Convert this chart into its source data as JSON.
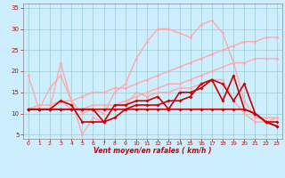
{
  "xlabel": "Vent moyen/en rafales ( km/h )",
  "background_color": "#cceeff",
  "grid_color": "#99cccc",
  "xlim": [
    -0.5,
    23.5
  ],
  "ylim": [
    4,
    36
  ],
  "yticks": [
    5,
    10,
    15,
    20,
    25,
    30,
    35
  ],
  "xticks": [
    0,
    1,
    2,
    3,
    4,
    5,
    6,
    7,
    8,
    9,
    10,
    11,
    12,
    13,
    14,
    15,
    16,
    17,
    18,
    19,
    20,
    21,
    22,
    23
  ],
  "series": [
    {
      "x": [
        0,
        1,
        2,
        3,
        4,
        5,
        6,
        7,
        8,
        9,
        10,
        11,
        12,
        13,
        14,
        15,
        16,
        17,
        18,
        19,
        20,
        21,
        22,
        23
      ],
      "y": [
        11,
        11,
        16,
        19,
        13,
        10,
        11,
        10,
        15,
        17,
        23,
        27,
        30,
        30,
        29,
        28,
        31,
        32,
        29,
        22,
        13,
        9,
        9,
        9
      ],
      "color": "#ffaaaa",
      "linewidth": 1.0,
      "markersize": 2.0
    },
    {
      "x": [
        0,
        1,
        2,
        3,
        4,
        5,
        6,
        7,
        8,
        9,
        10,
        11,
        12,
        13,
        14,
        15,
        16,
        17,
        18,
        19,
        20,
        21,
        22,
        23
      ],
      "y": [
        19,
        11,
        11,
        22,
        13,
        5,
        9,
        8,
        12,
        12,
        15,
        14,
        15,
        15,
        16,
        16,
        17,
        18,
        18,
        13,
        10,
        8,
        8,
        9
      ],
      "color": "#ffaaaa",
      "linewidth": 1.0,
      "markersize": 2.0
    },
    {
      "x": [
        0,
        1,
        2,
        3,
        4,
        5,
        6,
        7,
        8,
        9,
        10,
        11,
        12,
        13,
        14,
        15,
        16,
        17,
        18,
        19,
        20,
        21,
        22,
        23
      ],
      "y": [
        11,
        11,
        11,
        13,
        11,
        11,
        12,
        12,
        12,
        13,
        14,
        15,
        16,
        17,
        17,
        18,
        19,
        20,
        21,
        22,
        22,
        23,
        23,
        23
      ],
      "color": "#ffaaaa",
      "linewidth": 1.0,
      "markersize": 2.0
    },
    {
      "x": [
        0,
        1,
        2,
        3,
        4,
        5,
        6,
        7,
        8,
        9,
        10,
        11,
        12,
        13,
        14,
        15,
        16,
        17,
        18,
        19,
        20,
        21,
        22,
        23
      ],
      "y": [
        11,
        12,
        12,
        13,
        13,
        14,
        15,
        15,
        16,
        16,
        17,
        18,
        19,
        20,
        21,
        22,
        23,
        24,
        25,
        26,
        27,
        27,
        28,
        28
      ],
      "color": "#ffaaaa",
      "linewidth": 1.0,
      "markersize": 2.0
    },
    {
      "x": [
        0,
        1,
        2,
        3,
        4,
        5,
        6,
        7,
        8,
        9,
        10,
        11,
        12,
        13,
        14,
        15,
        16,
        17,
        18,
        19,
        20,
        21,
        22,
        23
      ],
      "y": [
        11,
        11,
        11,
        11,
        11,
        11,
        11,
        11,
        11,
        11,
        11,
        11,
        11,
        11,
        11,
        11,
        11,
        11,
        11,
        11,
        11,
        10,
        8,
        7
      ],
      "color": "#cc0000",
      "linewidth": 1.2,
      "markersize": 2.0
    },
    {
      "x": [
        0,
        1,
        2,
        3,
        4,
        5,
        6,
        7,
        8,
        9,
        10,
        11,
        12,
        13,
        14,
        15,
        16,
        17,
        18,
        19,
        20,
        21,
        22,
        23
      ],
      "y": [
        11,
        11,
        11,
        13,
        12,
        8,
        8,
        8,
        12,
        12,
        13,
        13,
        14,
        11,
        15,
        15,
        16,
        18,
        17,
        13,
        17,
        10,
        8,
        7
      ],
      "color": "#cc0000",
      "linewidth": 1.2,
      "markersize": 2.0
    },
    {
      "x": [
        0,
        1,
        2,
        3,
        4,
        5,
        6,
        7,
        8,
        9,
        10,
        11,
        12,
        13,
        14,
        15,
        16,
        17,
        18,
        19,
        20,
        21,
        22,
        23
      ],
      "y": [
        11,
        11,
        11,
        11,
        11,
        11,
        11,
        8,
        9,
        11,
        12,
        12,
        12,
        13,
        13,
        14,
        17,
        18,
        13,
        19,
        11,
        10,
        8,
        8
      ],
      "color": "#cc0000",
      "linewidth": 1.2,
      "markersize": 2.0
    }
  ]
}
